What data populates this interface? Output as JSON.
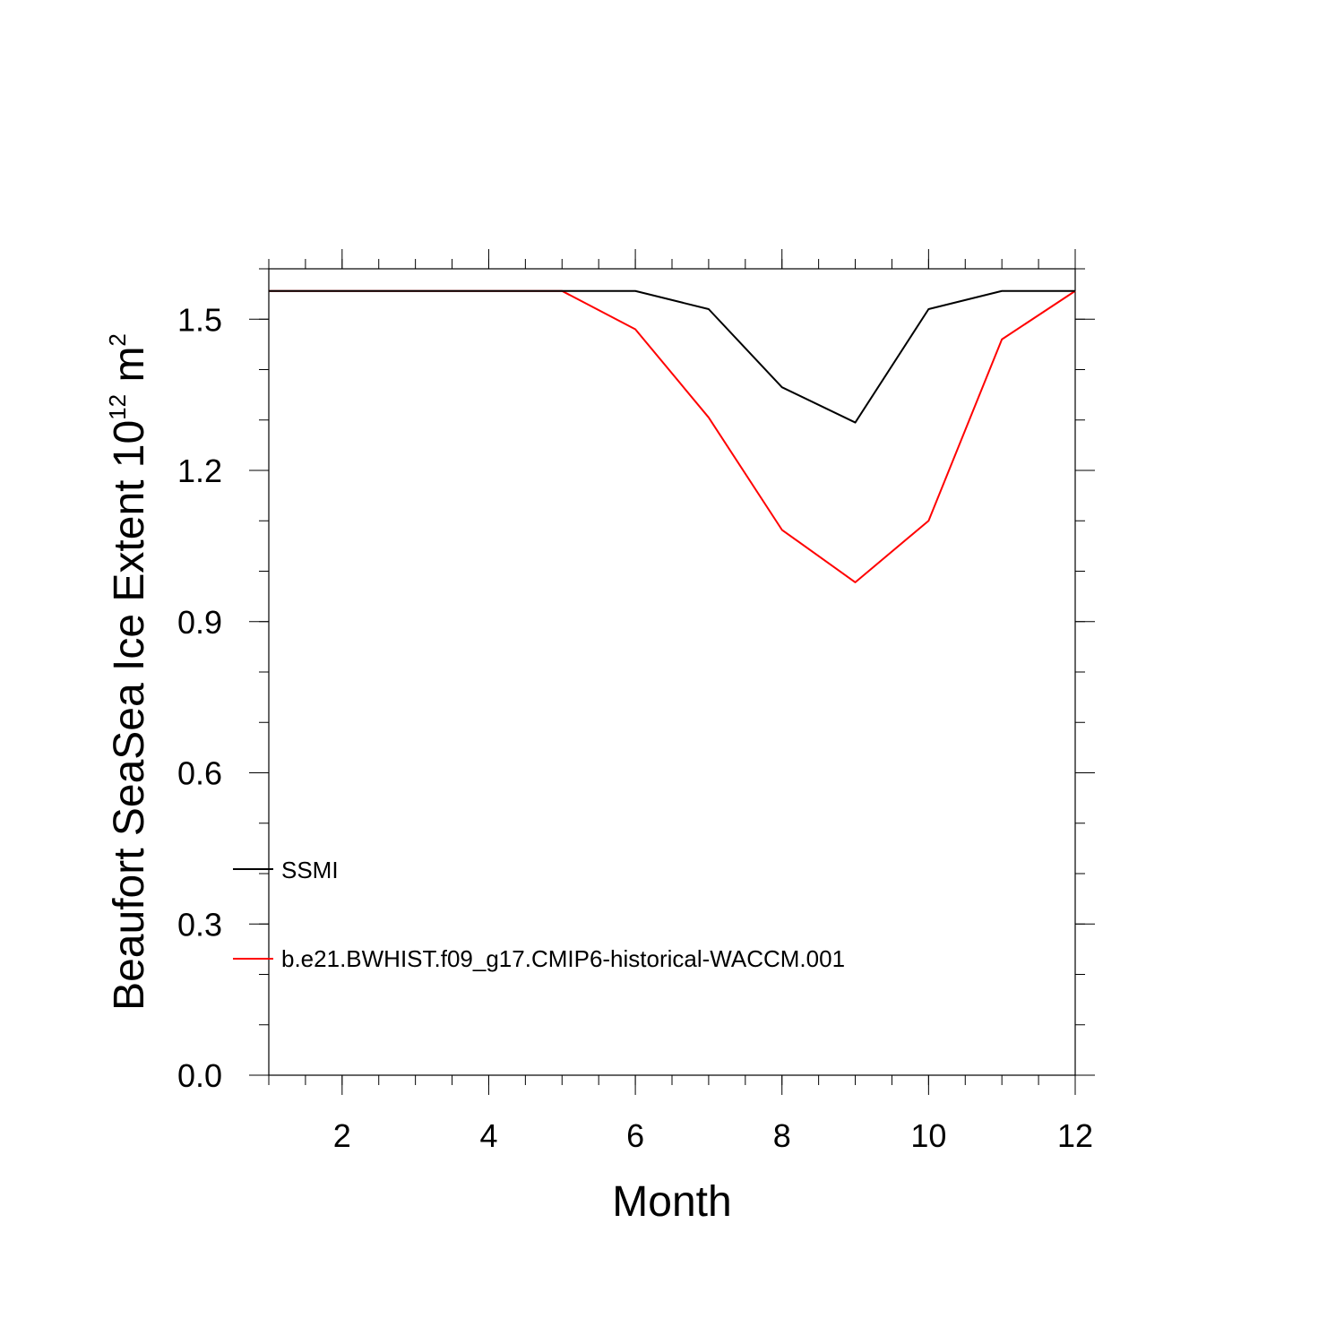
{
  "chart_data": {
    "type": "line",
    "xlabel": "Month",
    "ylabel": {
      "text": "Beaufort SeaSea Ice Extent 10",
      "superscript": "12",
      "unit": " m",
      "unit_superscript": "2"
    },
    "xlim": [
      1,
      12
    ],
    "ylim": [
      0.0,
      1.6
    ],
    "x_ticks": [
      2,
      4,
      6,
      8,
      10,
      12
    ],
    "x_tick_labels": [
      "2",
      "4",
      "6",
      "8",
      "10",
      "12"
    ],
    "y_ticks": [
      0.0,
      0.3,
      0.6,
      0.9,
      1.2,
      1.5
    ],
    "y_tick_labels": [
      "0.0",
      "0.3",
      "0.6",
      "0.9",
      "1.2",
      "1.5"
    ],
    "grid": false,
    "legend_position": "bottom-left",
    "x": [
      1,
      2,
      3,
      4,
      5,
      6,
      7,
      8,
      9,
      10,
      11,
      12
    ],
    "series": [
      {
        "name": "SSMI",
        "color": "#000000",
        "values": [
          1.556,
          1.556,
          1.556,
          1.556,
          1.556,
          1.556,
          1.52,
          1.365,
          1.295,
          1.52,
          1.556,
          1.556
        ]
      },
      {
        "name": "b.e21.BWHIST.f09_g17.CMIP6-historical-WACCM.001",
        "color": "#ff0000",
        "values": [
          1.556,
          1.556,
          1.556,
          1.556,
          1.556,
          1.48,
          1.305,
          1.082,
          0.978,
          1.1,
          1.46,
          1.556
        ]
      }
    ]
  }
}
